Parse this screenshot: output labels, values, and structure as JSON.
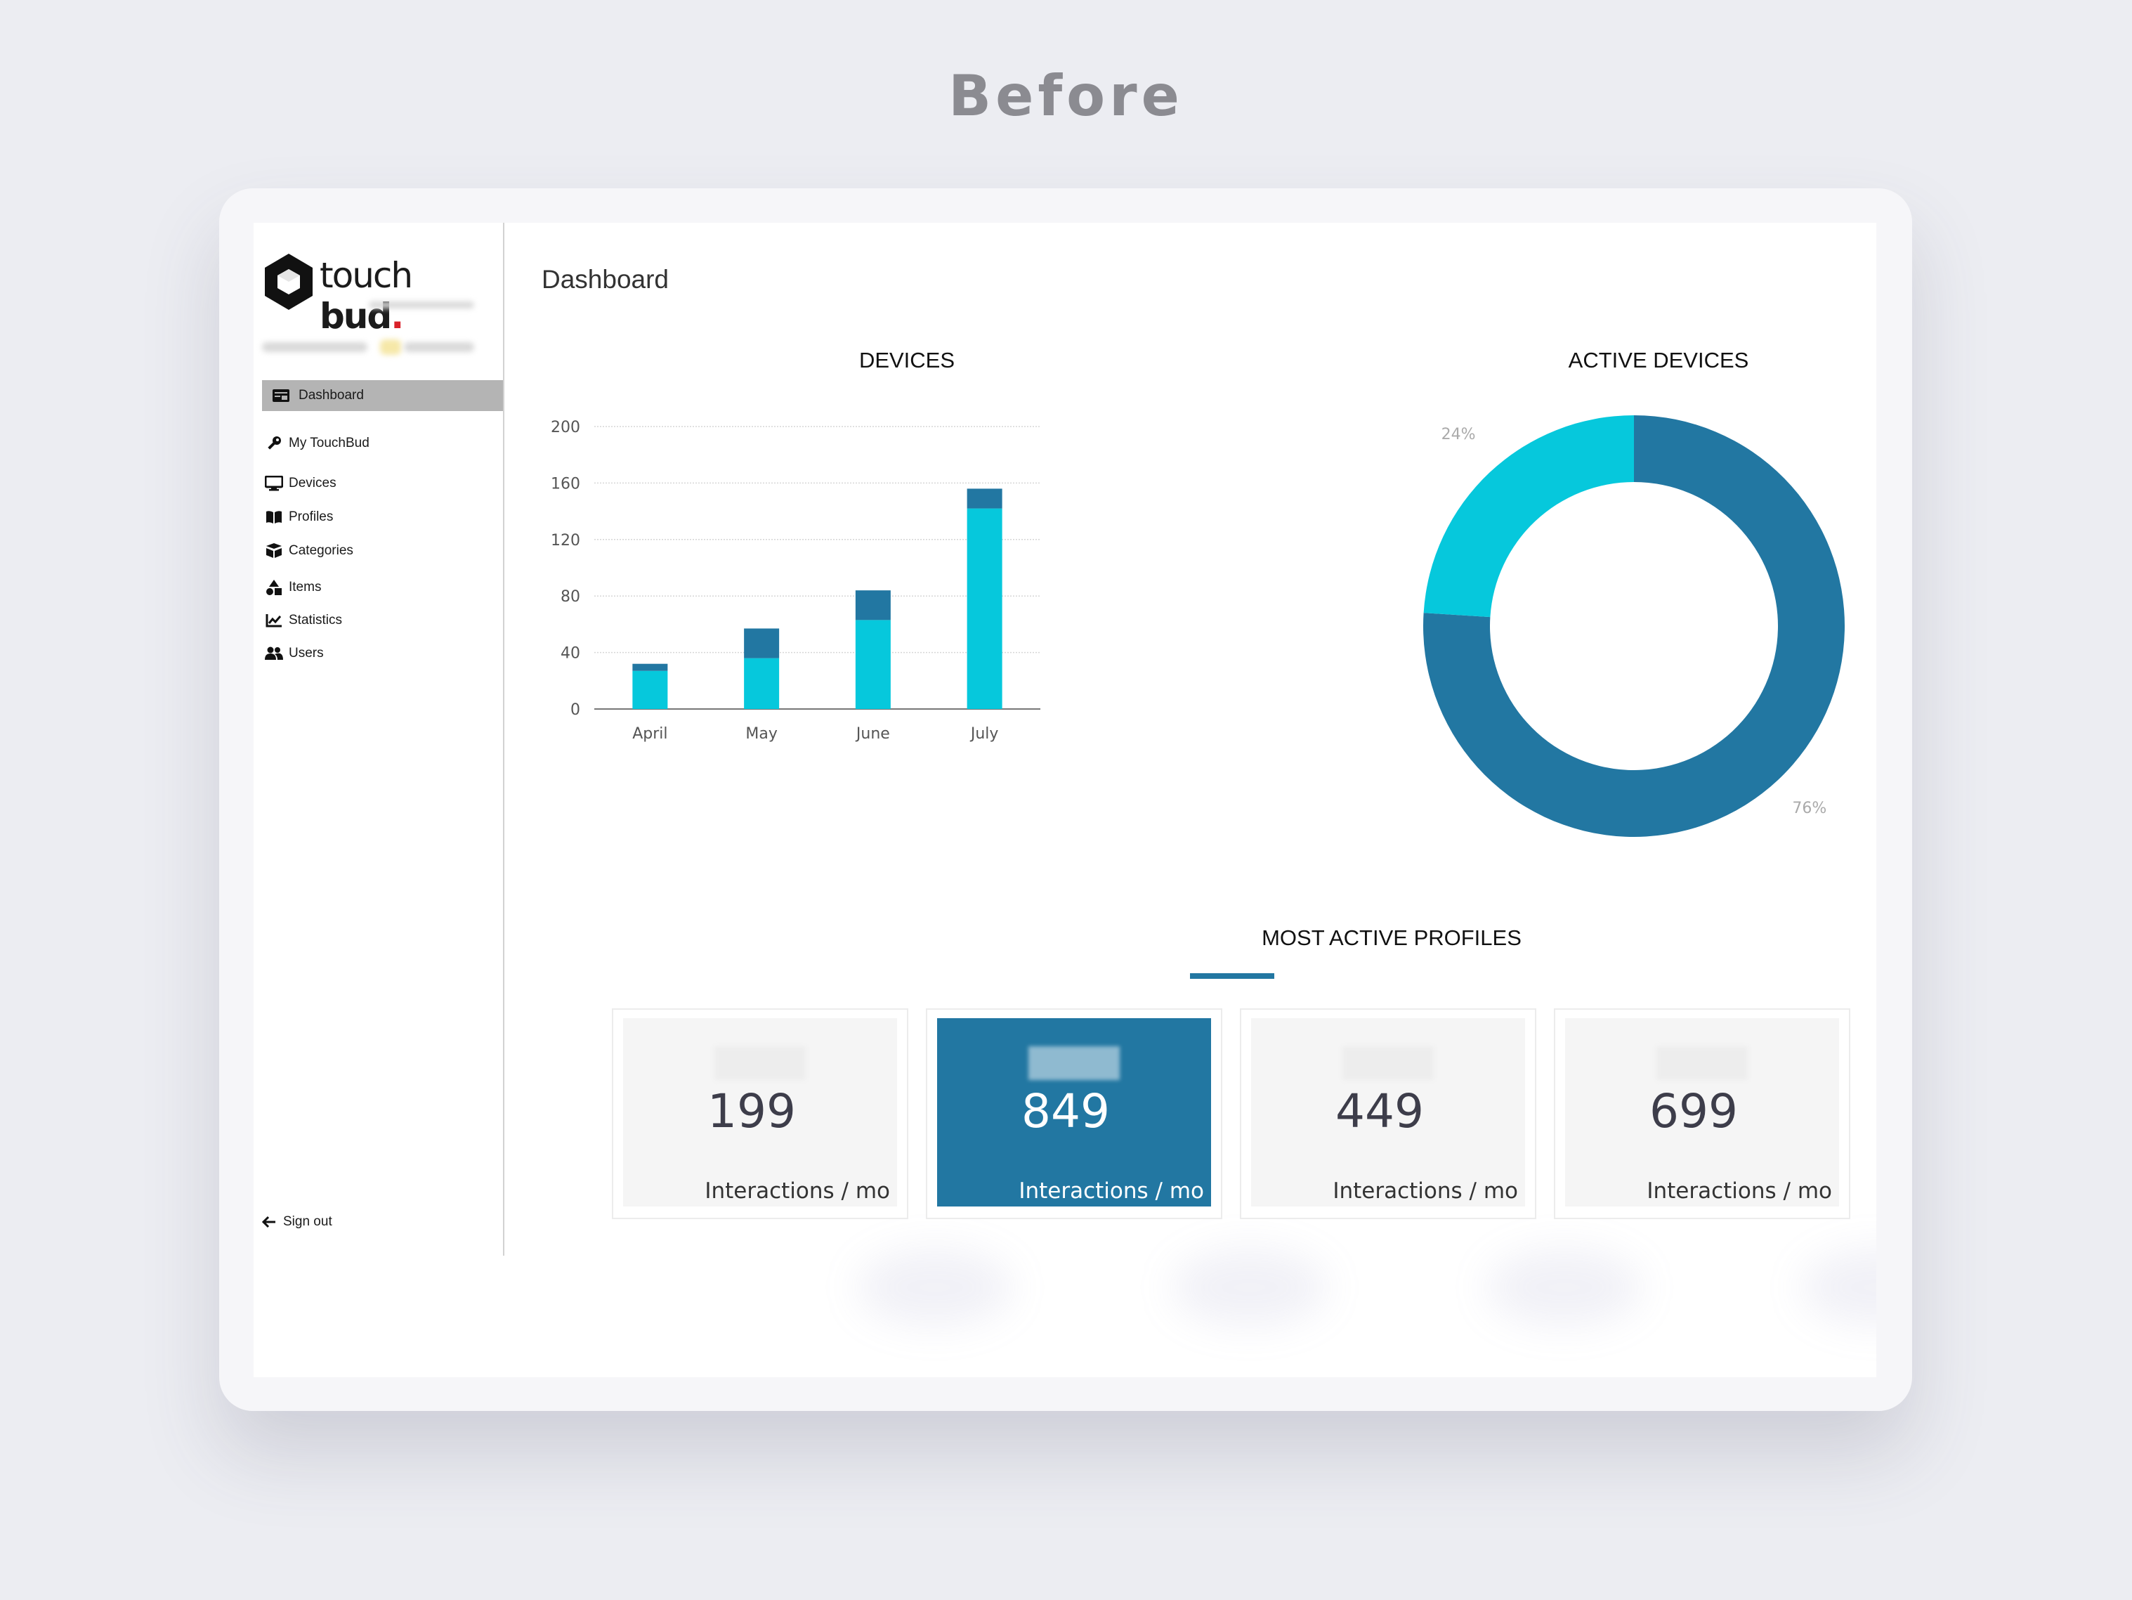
{
  "header": {
    "title": "Before"
  },
  "sidebar": {
    "brand": {
      "word1": "touch",
      "word2": "bud",
      "dot": "."
    },
    "items": [
      {
        "label": "Dashboard",
        "icon": "dashboard-icon",
        "active": true
      },
      {
        "label": "My TouchBud",
        "icon": "key-icon"
      },
      {
        "label": "Devices",
        "icon": "monitor-icon"
      },
      {
        "label": "Profiles",
        "icon": "book-icon"
      },
      {
        "label": "Categories",
        "icon": "boxes-icon"
      },
      {
        "label": "Items",
        "icon": "shapes-icon"
      },
      {
        "label": "Statistics",
        "icon": "line-chart-icon"
      },
      {
        "label": "Users",
        "icon": "users-icon"
      }
    ],
    "signout_label": "Sign out"
  },
  "main": {
    "title": "Dashboard",
    "profiles_title": "MOST ACTIVE PROFILES",
    "profiles": [
      {
        "value": "199",
        "unit": "Interactions / mo",
        "highlight": false
      },
      {
        "value": "849",
        "unit": "Interactions / mo",
        "highlight": true
      },
      {
        "value": "449",
        "unit": "Interactions / mo",
        "highlight": false
      },
      {
        "value": "699",
        "unit": "Interactions / mo",
        "highlight": false
      }
    ]
  },
  "colors": {
    "dark": "#2277a2",
    "light": "#06c8dc",
    "active_nav": "#b4b4b4"
  },
  "chart_data": [
    {
      "type": "bar",
      "stacked": true,
      "title": "DEVICES",
      "categories": [
        "April",
        "May",
        "June",
        "July"
      ],
      "series": [
        {
          "values": [
            27,
            36,
            63,
            142
          ],
          "color": "#06c8dc"
        },
        {
          "values": [
            5,
            21,
            21,
            14
          ],
          "color": "#2277a2"
        }
      ],
      "ylim": [
        0,
        200
      ],
      "yticks": [
        0,
        40,
        80,
        120,
        160,
        200
      ],
      "grid": true
    },
    {
      "type": "pie",
      "donut": true,
      "title": "ACTIVE DEVICES",
      "slices": [
        {
          "value": 76,
          "label": "76%",
          "color": "#2277a2"
        },
        {
          "value": 24,
          "label": "24%",
          "color": "#06c8dc"
        }
      ]
    }
  ]
}
